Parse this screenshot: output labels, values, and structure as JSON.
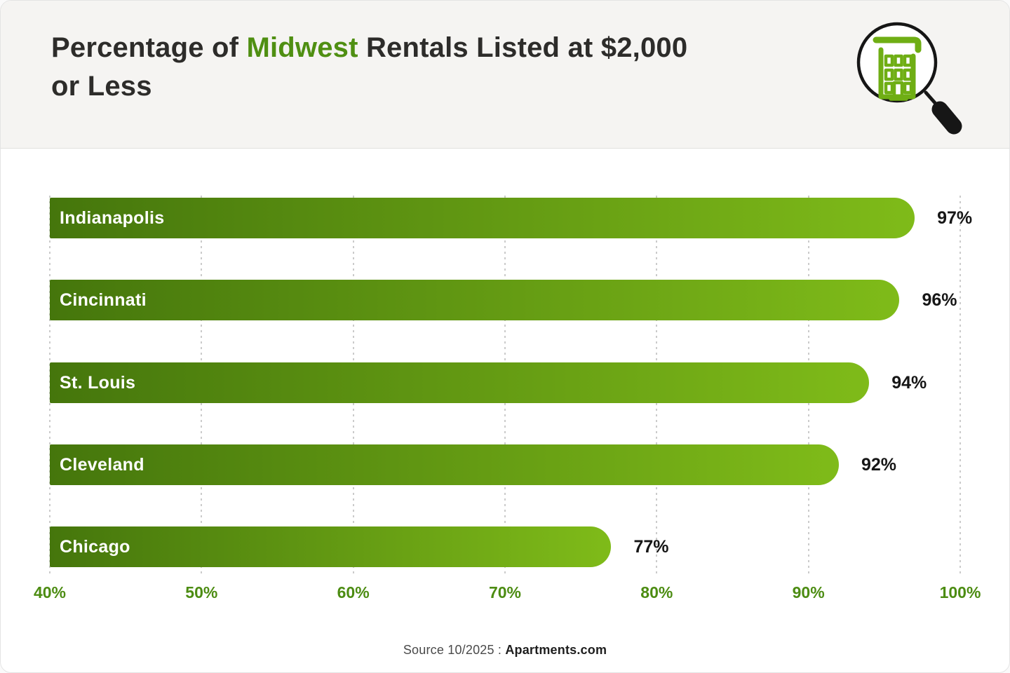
{
  "header": {
    "title_prefix": "Percentage of ",
    "title_highlight": "Midwest",
    "title_suffix": " Rentals Listed at $2,000 or Less"
  },
  "icon": {
    "name": "building-under-magnifier",
    "building_color": "#6fae14",
    "glass_color": "#161616"
  },
  "chart_data": {
    "type": "bar",
    "orientation": "horizontal",
    "title": "Percentage of Midwest Rentals Listed at $2,000 or Less",
    "categories": [
      "Indianapolis",
      "Cincinnati",
      "St. Louis",
      "Cleveland",
      "Chicago"
    ],
    "values": [
      97,
      96,
      94,
      92,
      77
    ],
    "value_labels": [
      "97%",
      "96%",
      "94%",
      "92%",
      "77%"
    ],
    "xlabel": "",
    "ylabel": "",
    "xlim": [
      40,
      100
    ],
    "ticks": [
      40,
      50,
      60,
      70,
      80,
      90,
      100
    ],
    "tick_labels": [
      "40%",
      "50%",
      "60%",
      "70%",
      "80%",
      "90%",
      "100%"
    ],
    "grid": "vertical-dotted",
    "legend": "none",
    "bar_gradient_start": "#45760c",
    "bar_gradient_end": "#7fbb19",
    "axis_label_color": "#4c8c12",
    "value_label_color": "#161616"
  },
  "footer": {
    "source_prefix": "Source 10/2025 : ",
    "source_brand": "Apartments.com"
  },
  "colors": {
    "header_background": "#f5f4f2",
    "card_background": "#ffffff",
    "title_text": "#2d2c2a",
    "title_highlight": "#4f8f12",
    "gridline": "#cbcbcb"
  }
}
